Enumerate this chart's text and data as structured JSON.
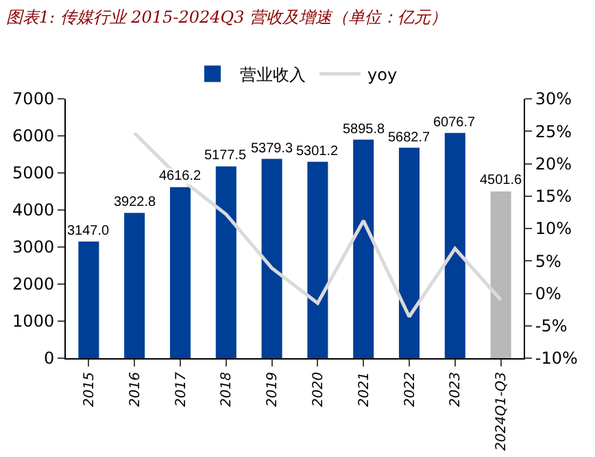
{
  "chart_data": {
    "type": "bar",
    "title": "图表1: 传媒行业 2015-2024Q3 营收及增速（单位：亿元）",
    "categories": [
      "2015",
      "2016",
      "2017",
      "2018",
      "2019",
      "2020",
      "2021",
      "2022",
      "2023",
      "2024Q1-Q3"
    ],
    "series": [
      {
        "name": "营业收入",
        "colors": [
          "#003f98",
          "#003f98",
          "#003f98",
          "#003f98",
          "#003f98",
          "#003f98",
          "#003f98",
          "#003f98",
          "#003f98",
          "#b8b8b8"
        ],
        "values": [
          3147.0,
          3922.8,
          4616.2,
          5177.5,
          5379.3,
          5301.2,
          5895.8,
          5682.7,
          6076.7,
          4501.6
        ],
        "value_labels": [
          "3147.0",
          "3922.8",
          "4616.2",
          "5177.5",
          "5379.3",
          "5301.2",
          "5895.8",
          "5682.7",
          "6076.7",
          "4501.6"
        ]
      },
      {
        "name": "yoy",
        "type": "line",
        "axis": "y2",
        "color": "#dadada",
        "values": [
          null,
          24.7,
          17.7,
          12.2,
          3.9,
          -1.5,
          11.2,
          -3.6,
          6.9,
          -1.0
        ]
      }
    ],
    "ylim": [
      0,
      7000
    ],
    "yticks": [
      0,
      1000,
      2000,
      3000,
      4000,
      5000,
      6000,
      7000
    ],
    "y2lim": [
      -10,
      30
    ],
    "y2ticks": [
      {
        "value": -10,
        "label": "-10%"
      },
      {
        "value": -5,
        "label": "-5%"
      },
      {
        "value": 0,
        "label": "0%"
      },
      {
        "value": 5,
        "label": "5%"
      },
      {
        "value": 10,
        "label": "10%"
      },
      {
        "value": 15,
        "label": "15%"
      },
      {
        "value": 20,
        "label": "20%"
      },
      {
        "value": 25,
        "label": "25%"
      },
      {
        "value": 30,
        "label": "30%"
      }
    ],
    "grid": false,
    "legend": "top",
    "marker": "none",
    "line_style": "solid"
  }
}
